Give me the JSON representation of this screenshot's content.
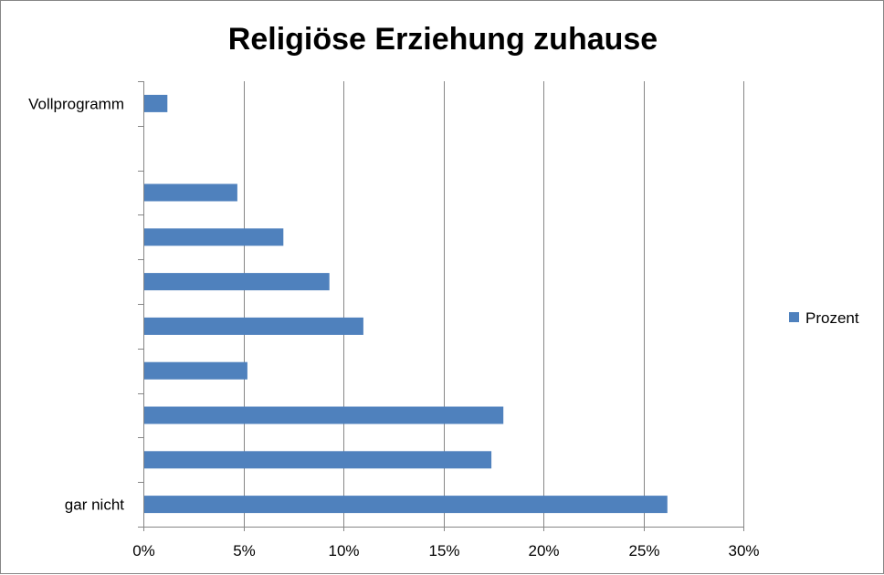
{
  "chart_data": {
    "type": "bar",
    "orientation": "horizontal",
    "title": "Religiöse Erziehung zuhause",
    "xlabel": "",
    "ylabel": "",
    "xlim": [
      0,
      30
    ],
    "x_ticks": [
      "0%",
      "5%",
      "10%",
      "15%",
      "20%",
      "25%",
      "30%"
    ],
    "categories": [
      "gar nicht",
      "",
      "",
      "",
      "",
      "",
      "",
      "",
      "",
      "Vollprogramm"
    ],
    "series": [
      {
        "name": "Prozent",
        "color": "#4f81bd",
        "values": [
          26.2,
          17.4,
          18.0,
          5.2,
          11.0,
          9.3,
          7.0,
          4.7,
          0,
          1.2
        ]
      }
    ],
    "grid": "vertical",
    "legend_position": "right"
  }
}
